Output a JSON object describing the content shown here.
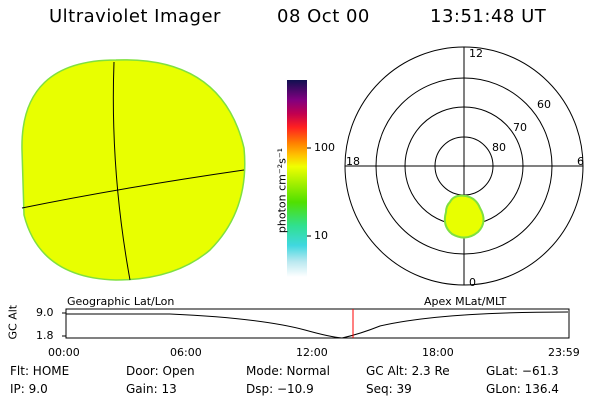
{
  "header": {
    "title": "Ultraviolet Imager",
    "date": "08 Oct 00",
    "time": "13:51:48 UT"
  },
  "colorbar": {
    "unit_label": "photon cm⁻²s⁻¹",
    "tick_100": "100",
    "tick_10": "10"
  },
  "geo_panel": {
    "label": "Geographic Lat/Lon"
  },
  "polar_panel": {
    "label": "Apex MLat/MLT",
    "mlt_12": "12",
    "mlt_18": "18",
    "mlt_6": "6",
    "mlt_0": "0",
    "lat_60": "60",
    "lat_70": "70",
    "lat_80": "80"
  },
  "timeline": {
    "y_label": "GC Alt",
    "y_high": "9.0",
    "y_low": "1.8",
    "x_ticks": [
      "00:00",
      "06:00",
      "12:00",
      "18:00",
      "23:59"
    ]
  },
  "info": {
    "flt": "Flt: HOME",
    "ip": "IP:  9.0",
    "door": "Door: Open",
    "gain": "Gain: 13",
    "mode": "Mode: Normal",
    "dsp": "Dsp:  −10.9",
    "gc_alt": "GC Alt: 2.3 Re",
    "seq": "Seq: 39",
    "glat": "GLat:  −61.3",
    "glon": "GLon: 136.4"
  },
  "colors": {
    "image_fill": "#e8ff00",
    "image_edge": "#7fe040",
    "marker": "#ff0000"
  }
}
